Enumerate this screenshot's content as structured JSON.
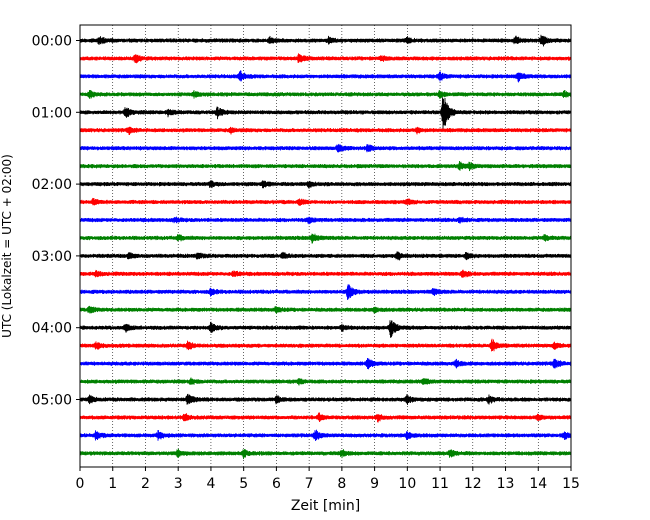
{
  "chart_data": {
    "type": "line",
    "xlabel": "Zeit  [min]",
    "ylabel": "UTC (Lokalzeit = UTC + 02:00)",
    "xlim": [
      0,
      15
    ],
    "x_ticks": [
      0,
      1,
      2,
      3,
      4,
      5,
      6,
      7,
      8,
      9,
      10,
      11,
      12,
      13,
      14,
      15
    ],
    "y_tick_labels": [
      "00:00",
      "01:00",
      "02:00",
      "03:00",
      "04:00",
      "05:00"
    ],
    "y_tick_rows": [
      0,
      4,
      8,
      12,
      16,
      20
    ],
    "grid": "vertical-dotted",
    "row_minutes": 15,
    "color_cycle": [
      "#000000",
      "#ff0000",
      "#0000ff",
      "#008000"
    ],
    "traces": [
      {
        "row": 0,
        "events": [
          {
            "t": 0.6,
            "a": 0.45
          },
          {
            "t": 5.8,
            "a": 0.3
          },
          {
            "t": 7.6,
            "a": 0.3
          },
          {
            "t": 10.0,
            "a": 0.3
          },
          {
            "t": 13.3,
            "a": 0.4
          },
          {
            "t": 14.1,
            "a": 0.65
          }
        ]
      },
      {
        "row": 1,
        "events": [
          {
            "t": 1.7,
            "a": 0.45
          },
          {
            "t": 6.7,
            "a": 0.5
          },
          {
            "t": 9.2,
            "a": 0.25
          }
        ]
      },
      {
        "row": 2,
        "events": [
          {
            "t": 4.9,
            "a": 0.5
          },
          {
            "t": 11.0,
            "a": 0.45
          },
          {
            "t": 13.4,
            "a": 0.5
          }
        ]
      },
      {
        "row": 3,
        "events": [
          {
            "t": 0.3,
            "a": 0.35
          },
          {
            "t": 3.5,
            "a": 0.3
          },
          {
            "t": 11.0,
            "a": 0.35
          },
          {
            "t": 14.8,
            "a": 0.3
          }
        ]
      },
      {
        "row": 4,
        "events": [
          {
            "t": 1.4,
            "a": 0.6
          },
          {
            "t": 2.7,
            "a": 0.35
          },
          {
            "t": 4.2,
            "a": 0.6
          },
          {
            "t": 11.1,
            "a": 2.4
          }
        ]
      },
      {
        "row": 5,
        "events": [
          {
            "t": 1.5,
            "a": 0.35
          },
          {
            "t": 4.6,
            "a": 0.25
          },
          {
            "t": 10.3,
            "a": 0.25
          }
        ]
      },
      {
        "row": 6,
        "events": [
          {
            "t": 7.9,
            "a": 0.5
          },
          {
            "t": 8.8,
            "a": 0.35
          }
        ]
      },
      {
        "row": 7,
        "events": [
          {
            "t": 11.6,
            "a": 0.45
          },
          {
            "t": 11.9,
            "a": 0.3
          }
        ]
      },
      {
        "row": 8,
        "events": [
          {
            "t": 4.0,
            "a": 0.35
          },
          {
            "t": 5.6,
            "a": 0.3
          },
          {
            "t": 7.0,
            "a": 0.3
          }
        ]
      },
      {
        "row": 9,
        "events": [
          {
            "t": 0.4,
            "a": 0.3
          },
          {
            "t": 6.7,
            "a": 0.3
          },
          {
            "t": 10.0,
            "a": 0.3
          }
        ]
      },
      {
        "row": 10,
        "events": [
          {
            "t": 2.9,
            "a": 0.25
          },
          {
            "t": 7.0,
            "a": 0.3
          },
          {
            "t": 11.6,
            "a": 0.25
          }
        ]
      },
      {
        "row": 11,
        "events": [
          {
            "t": 3.0,
            "a": 0.3
          },
          {
            "t": 7.1,
            "a": 0.5
          },
          {
            "t": 14.2,
            "a": 0.35
          }
        ]
      },
      {
        "row": 12,
        "events": [
          {
            "t": 1.5,
            "a": 0.35
          },
          {
            "t": 3.6,
            "a": 0.3
          },
          {
            "t": 6.2,
            "a": 0.3
          },
          {
            "t": 9.7,
            "a": 0.45
          },
          {
            "t": 11.8,
            "a": 0.35
          }
        ]
      },
      {
        "row": 13,
        "events": [
          {
            "t": 0.5,
            "a": 0.3
          },
          {
            "t": 4.7,
            "a": 0.3
          },
          {
            "t": 11.7,
            "a": 0.4
          }
        ]
      },
      {
        "row": 14,
        "events": [
          {
            "t": 4.0,
            "a": 0.35
          },
          {
            "t": 8.2,
            "a": 1.0
          },
          {
            "t": 10.8,
            "a": 0.3
          }
        ]
      },
      {
        "row": 15,
        "events": [
          {
            "t": 0.3,
            "a": 0.35
          },
          {
            "t": 6.0,
            "a": 0.3
          },
          {
            "t": 9.0,
            "a": 0.25
          }
        ]
      },
      {
        "row": 16,
        "events": [
          {
            "t": 1.4,
            "a": 0.4
          },
          {
            "t": 4.0,
            "a": 0.55
          },
          {
            "t": 8.0,
            "a": 0.3
          },
          {
            "t": 9.5,
            "a": 1.1
          }
        ]
      },
      {
        "row": 17,
        "events": [
          {
            "t": 0.5,
            "a": 0.35
          },
          {
            "t": 3.3,
            "a": 0.4
          },
          {
            "t": 12.6,
            "a": 0.65
          },
          {
            "t": 14.5,
            "a": 0.3
          }
        ]
      },
      {
        "row": 18,
        "events": [
          {
            "t": 8.8,
            "a": 0.55
          },
          {
            "t": 11.5,
            "a": 0.35
          },
          {
            "t": 14.5,
            "a": 0.6
          }
        ]
      },
      {
        "row": 19,
        "events": [
          {
            "t": 3.4,
            "a": 0.3
          },
          {
            "t": 6.7,
            "a": 0.25
          },
          {
            "t": 10.5,
            "a": 0.35
          }
        ]
      },
      {
        "row": 20,
        "events": [
          {
            "t": 0.3,
            "a": 0.5
          },
          {
            "t": 3.3,
            "a": 0.6
          },
          {
            "t": 6.0,
            "a": 0.35
          },
          {
            "t": 10.0,
            "a": 0.45
          },
          {
            "t": 12.5,
            "a": 0.4
          }
        ]
      },
      {
        "row": 21,
        "events": [
          {
            "t": 3.2,
            "a": 0.35
          },
          {
            "t": 7.3,
            "a": 0.35
          },
          {
            "t": 9.1,
            "a": 0.4
          },
          {
            "t": 14.0,
            "a": 0.3
          }
        ]
      },
      {
        "row": 22,
        "events": [
          {
            "t": 0.5,
            "a": 0.45
          },
          {
            "t": 2.4,
            "a": 0.45
          },
          {
            "t": 7.2,
            "a": 0.55
          },
          {
            "t": 10.0,
            "a": 0.4
          },
          {
            "t": 14.8,
            "a": 0.4
          }
        ]
      },
      {
        "row": 23,
        "events": [
          {
            "t": 3.0,
            "a": 0.4
          },
          {
            "t": 5.0,
            "a": 0.4
          },
          {
            "t": 8.0,
            "a": 0.35
          },
          {
            "t": 11.3,
            "a": 0.35
          }
        ]
      }
    ]
  }
}
